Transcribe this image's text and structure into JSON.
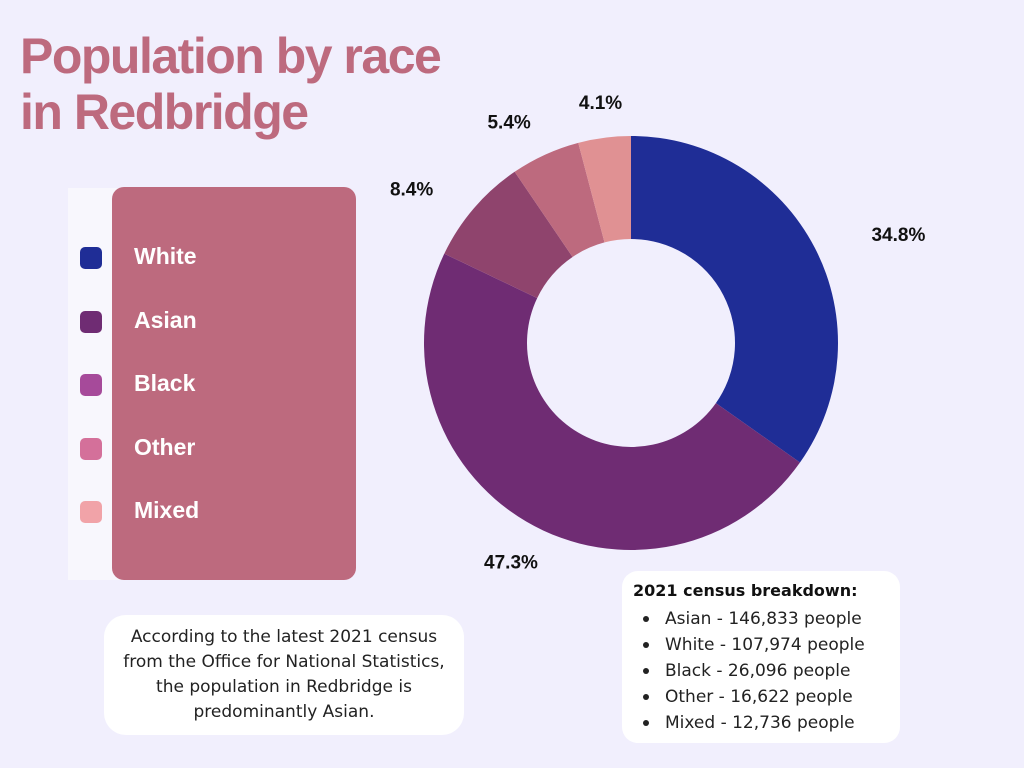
{
  "title": {
    "line1": "Population by race",
    "line2": "in Redbridge"
  },
  "legend": [
    {
      "label": "White",
      "color": "#1f2d96"
    },
    {
      "label": "Asian",
      "color": "#6f2c73"
    },
    {
      "label": "Black",
      "color": "#a64a9a"
    },
    {
      "label": "Other",
      "color": "#d4709a"
    },
    {
      "label": "Mixed",
      "color": "#f1a3a8"
    }
  ],
  "chart_data": {
    "type": "pie",
    "variant": "donut",
    "categories": [
      "White",
      "Asian",
      "Black",
      "Other",
      "Mixed"
    ],
    "values": [
      34.8,
      47.3,
      8.4,
      5.4,
      4.1
    ],
    "labels": [
      "34.8%",
      "47.3%",
      "8.4%",
      "5.4%",
      "4.1%"
    ],
    "colors": [
      "#1f2d96",
      "#6f2c73",
      "#8f446d",
      "#bd6a7e",
      "#e09193"
    ],
    "legend_position": "left"
  },
  "note": "According to the latest 2021 census from the Office for National Statistics, the population in Redbridge is predominantly Asian.",
  "breakdown": {
    "title": "2021 census breakdown:",
    "items": [
      "Asian - 146,833 people",
      "White - 107,974 people",
      "Black - 26,096 people",
      "Other - 16,622 people",
      "Mixed - 12,736 people"
    ]
  }
}
